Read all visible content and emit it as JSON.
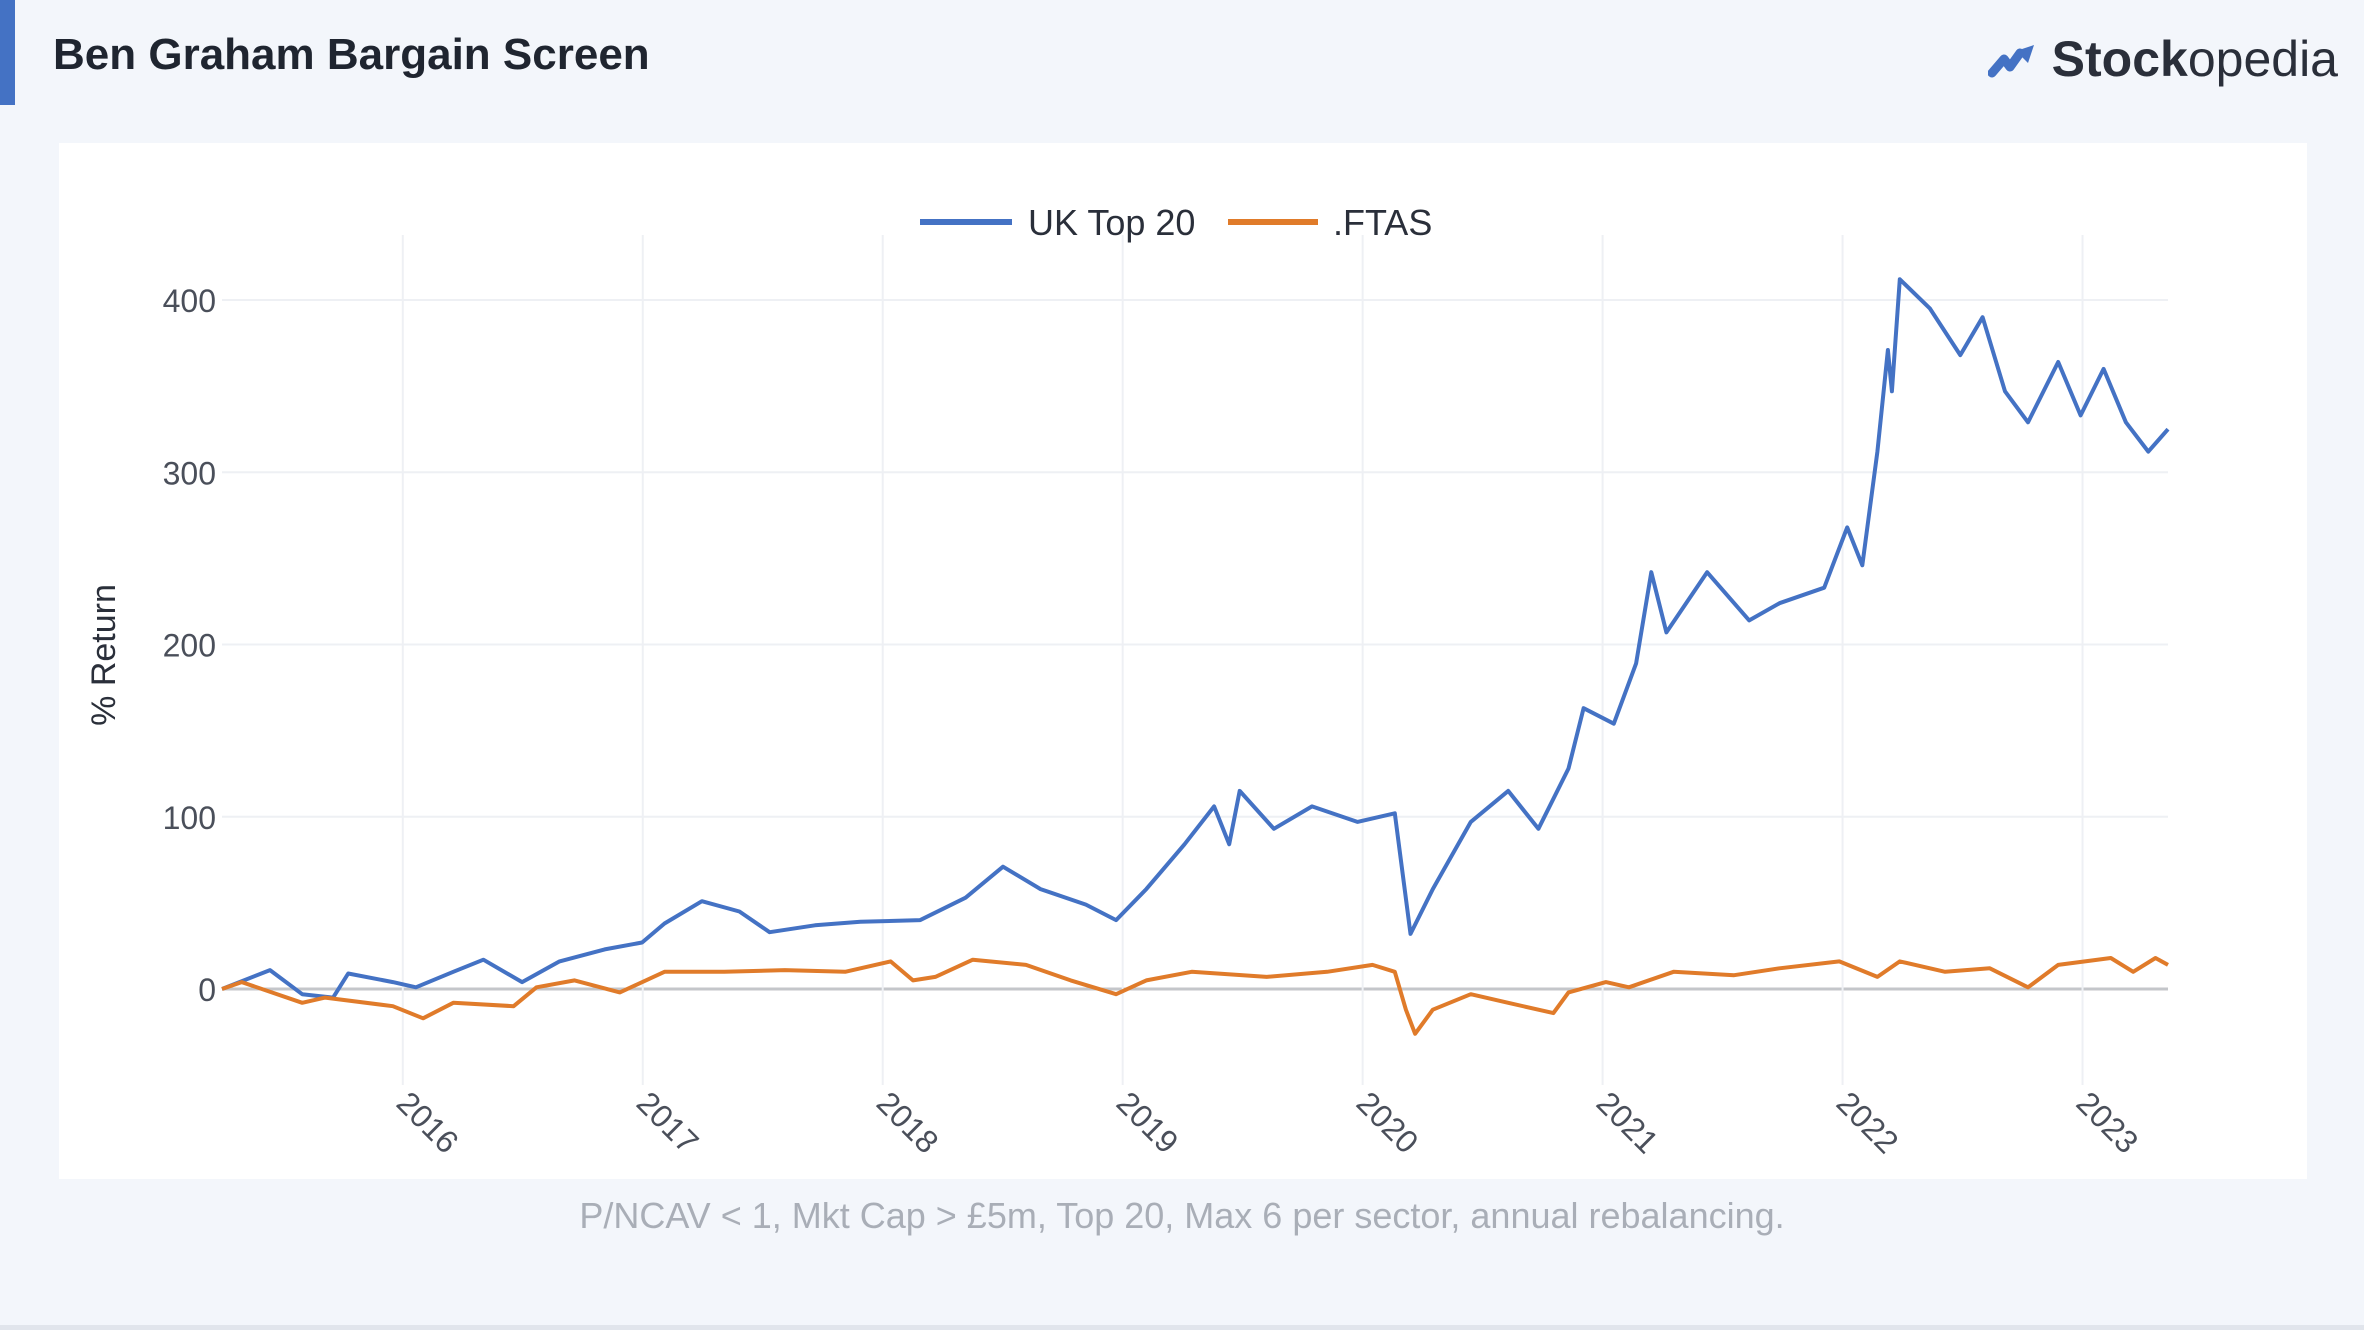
{
  "header": {
    "title": "Ben Graham Bargain Screen",
    "logo_text_bold": "Stock",
    "logo_text_light": "opedia",
    "accent_color": "#4472c4"
  },
  "footer": {
    "note": "P/NCAV < 1, Mkt Cap > £5m, Top 20, Max 6 per sector, annual rebalancing."
  },
  "chart_data": {
    "type": "line",
    "title": "",
    "xlabel": "",
    "ylabel": "% Return",
    "ylim": [
      -60,
      450
    ],
    "xlim": [
      "2015-04-01",
      "2023-05-11"
    ],
    "yticks": [
      "0",
      "100",
      "200",
      "300",
      "400"
    ],
    "xticks": [
      "2016",
      "2017",
      "2018",
      "2019",
      "2020",
      "2021",
      "2022",
      "2023"
    ],
    "grid": true,
    "legend": "top-center",
    "series": [
      {
        "name": "UK Top 20",
        "color": "#4472c4",
        "points": [
          [
            "2015-04-01",
            0
          ],
          [
            "2015-06-13",
            11
          ],
          [
            "2015-08-01",
            -3
          ],
          [
            "2015-09-17",
            -5
          ],
          [
            "2015-10-10",
            9
          ],
          [
            "2015-12-17",
            4
          ],
          [
            "2016-01-21",
            1
          ],
          [
            "2016-03-18",
            10
          ],
          [
            "2016-05-03",
            17
          ],
          [
            "2016-07-01",
            4
          ],
          [
            "2016-08-27",
            16
          ],
          [
            "2016-11-04",
            23
          ],
          [
            "2016-12-31",
            27
          ],
          [
            "2017-02-03",
            38
          ],
          [
            "2017-04-01",
            51
          ],
          [
            "2017-05-28",
            45
          ],
          [
            "2017-07-13",
            33
          ],
          [
            "2017-09-20",
            37
          ],
          [
            "2017-11-28",
            39
          ],
          [
            "2018-02-27",
            40
          ],
          [
            "2018-05-07",
            53
          ],
          [
            "2018-07-03",
            71
          ],
          [
            "2018-08-29",
            58
          ],
          [
            "2018-11-06",
            49
          ],
          [
            "2018-12-22",
            40
          ],
          [
            "2019-02-06",
            58
          ],
          [
            "2019-04-05",
            84
          ],
          [
            "2019-05-20",
            106
          ],
          [
            "2019-06-12",
            84
          ],
          [
            "2019-06-28",
            115
          ],
          [
            "2019-08-19",
            93
          ],
          [
            "2019-10-16",
            106
          ],
          [
            "2019-12-24",
            97
          ],
          [
            "2020-02-19",
            102
          ],
          [
            "2020-03-14",
            32
          ],
          [
            "2020-04-17",
            58
          ],
          [
            "2020-06-14",
            97
          ],
          [
            "2020-08-10",
            115
          ],
          [
            "2020-09-25",
            93
          ],
          [
            "2020-11-10",
            128
          ],
          [
            "2020-12-03",
            163
          ],
          [
            "2021-01-18",
            154
          ],
          [
            "2021-02-21",
            189
          ],
          [
            "2021-03-16",
            242
          ],
          [
            "2021-04-08",
            207
          ],
          [
            "2021-06-09",
            242
          ],
          [
            "2021-08-12",
            214
          ],
          [
            "2021-09-27",
            224
          ],
          [
            "2021-12-04",
            233
          ],
          [
            "2022-01-08",
            268
          ],
          [
            "2022-01-31",
            246
          ],
          [
            "2022-02-23",
            312
          ],
          [
            "2022-03-11",
            371
          ],
          [
            "2022-03-17",
            347
          ],
          [
            "2022-03-29",
            412
          ],
          [
            "2022-05-14",
            395
          ],
          [
            "2022-06-29",
            368
          ],
          [
            "2022-08-02",
            390
          ],
          [
            "2022-09-05",
            347
          ],
          [
            "2022-10-10",
            329
          ],
          [
            "2022-11-25",
            364
          ],
          [
            "2022-12-29",
            333
          ],
          [
            "2023-02-02",
            360
          ],
          [
            "2023-03-08",
            329
          ],
          [
            "2023-04-11",
            312
          ],
          [
            "2023-05-11",
            325
          ]
        ]
      },
      {
        "name": ".FTAS",
        "color": "#e07b2a",
        "points": [
          [
            "2015-04-01",
            0
          ],
          [
            "2015-05-01",
            4
          ],
          [
            "2015-08-01",
            -8
          ],
          [
            "2015-09-05",
            -5
          ],
          [
            "2015-12-17",
            -10
          ],
          [
            "2016-02-01",
            -17
          ],
          [
            "2016-03-18",
            -8
          ],
          [
            "2016-06-18",
            -10
          ],
          [
            "2016-07-23",
            1
          ],
          [
            "2016-09-19",
            5
          ],
          [
            "2016-11-27",
            -2
          ],
          [
            "2017-02-03",
            10
          ],
          [
            "2017-05-05",
            10
          ],
          [
            "2017-08-05",
            11
          ],
          [
            "2017-11-05",
            10
          ],
          [
            "2018-01-13",
            16
          ],
          [
            "2018-02-16",
            5
          ],
          [
            "2018-03-22",
            7
          ],
          [
            "2018-05-18",
            17
          ],
          [
            "2018-08-07",
            14
          ],
          [
            "2018-10-14",
            5
          ],
          [
            "2018-12-22",
            -3
          ],
          [
            "2019-02-06",
            5
          ],
          [
            "2019-04-16",
            10
          ],
          [
            "2019-08-08",
            7
          ],
          [
            "2019-11-08",
            10
          ],
          [
            "2020-01-16",
            14
          ],
          [
            "2020-02-19",
            10
          ],
          [
            "2020-03-07",
            -12
          ],
          [
            "2020-03-21",
            -26
          ],
          [
            "2020-04-17",
            -12
          ],
          [
            "2020-06-14",
            -3
          ],
          [
            "2020-08-10",
            -8
          ],
          [
            "2020-10-18",
            -14
          ],
          [
            "2020-11-10",
            -2
          ],
          [
            "2021-01-06",
            4
          ],
          [
            "2021-02-10",
            1
          ],
          [
            "2021-04-19",
            10
          ],
          [
            "2021-07-20",
            8
          ],
          [
            "2021-09-27",
            12
          ],
          [
            "2021-12-27",
            16
          ],
          [
            "2022-02-23",
            7
          ],
          [
            "2022-03-29",
            16
          ],
          [
            "2022-06-06",
            10
          ],
          [
            "2022-08-13",
            12
          ],
          [
            "2022-10-10",
            1
          ],
          [
            "2022-11-25",
            14
          ],
          [
            "2023-02-13",
            18
          ],
          [
            "2023-03-19",
            10
          ],
          [
            "2023-04-22",
            18
          ],
          [
            "2023-05-11",
            14
          ]
        ]
      }
    ]
  }
}
